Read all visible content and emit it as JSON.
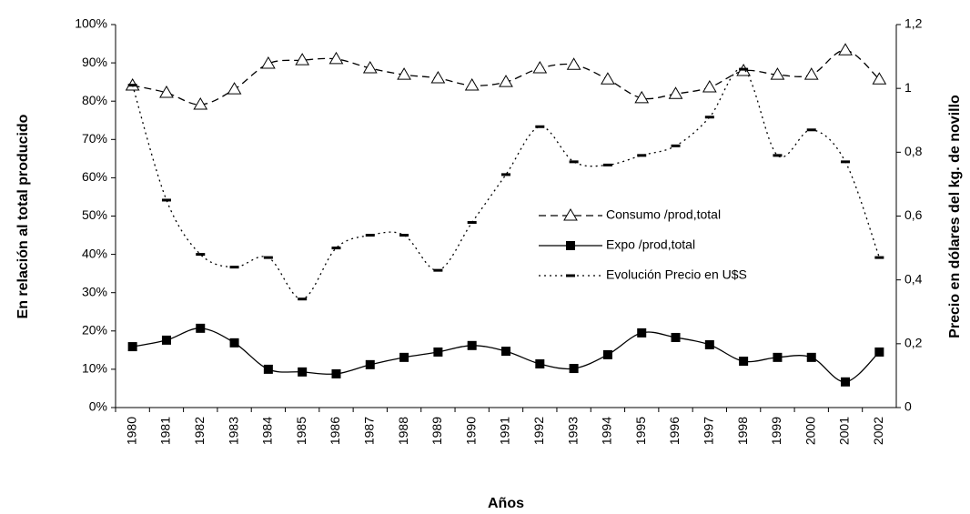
{
  "chart_data": {
    "type": "line",
    "categories": [
      "1980",
      "1981",
      "1982",
      "1983",
      "1984",
      "1985",
      "1986",
      "1987",
      "1988",
      "1989",
      "1990",
      "1991",
      "1992",
      "1993",
      "1994",
      "1995",
      "1996",
      "1997",
      "1998",
      "1999",
      "2000",
      "2001",
      "2002"
    ],
    "x_label": "Años",
    "y_label": "En relación al total producido",
    "y2_label": "Precio en dólares del kg. de novillo",
    "ylim": [
      0,
      100
    ],
    "yticks": [
      {
        "value": 0,
        "label": "0%"
      },
      {
        "value": 10,
        "label": "10%"
      },
      {
        "value": 20,
        "label": "20%"
      },
      {
        "value": 30,
        "label": "30%"
      },
      {
        "value": 40,
        "label": "40%"
      },
      {
        "value": 50,
        "label": "50%"
      },
      {
        "value": 60,
        "label": "60%"
      },
      {
        "value": 70,
        "label": "70%"
      },
      {
        "value": 80,
        "label": "80%"
      },
      {
        "value": 90,
        "label": "90%"
      },
      {
        "value": 100,
        "label": "100%"
      }
    ],
    "y2lim": [
      0,
      1.2
    ],
    "y2ticks": [
      0,
      {
        "value": 0.2,
        "label": "0,2"
      },
      {
        "value": 0.4,
        "label": "0,4"
      },
      {
        "value": 0.6,
        "label": "0,6"
      },
      {
        "value": 0.8,
        "label": "0,8"
      },
      1,
      {
        "value": 1.2,
        "label": "1,2"
      }
    ],
    "grid": false,
    "series": [
      {
        "name": "Consumo /prod,total",
        "color": "#000000",
        "marker": "triangle",
        "dash": "8,5",
        "values": [
          84.1,
          82.2,
          79.1,
          83.1,
          89.8,
          90.7,
          91,
          88.6,
          86.9,
          86,
          84.1,
          85,
          88.6,
          89.5,
          85.7,
          80.8,
          81.9,
          83.6,
          87.9,
          86.9,
          86.9,
          93.3,
          85.7
        ]
      },
      {
        "name": "Expo /prod,total",
        "color": "#000000",
        "marker": "square",
        "dash": "none",
        "values": [
          15.9,
          17.6,
          20.7,
          16.9,
          10,
          9.3,
          8.8,
          11.2,
          13.1,
          14.5,
          16.2,
          14.7,
          11.4,
          10.2,
          13.8,
          19.5,
          18.3,
          16.4,
          12.1,
          13.1,
          13.1,
          6.7,
          14.5
        ]
      },
      {
        "name": "Evolución Precio en U$S",
        "color": "#000000",
        "marker": "dash",
        "dash": "2,4",
        "axis": "y2",
        "values": [
          1.01,
          0.65,
          0.48,
          0.44,
          0.47,
          0.34,
          0.5,
          0.54,
          0.54,
          0.43,
          0.58,
          0.73,
          0.88,
          0.77,
          0.76,
          0.79,
          0.82,
          0.91,
          1.06,
          0.79,
          0.87,
          0.77,
          0.47
        ]
      }
    ]
  }
}
